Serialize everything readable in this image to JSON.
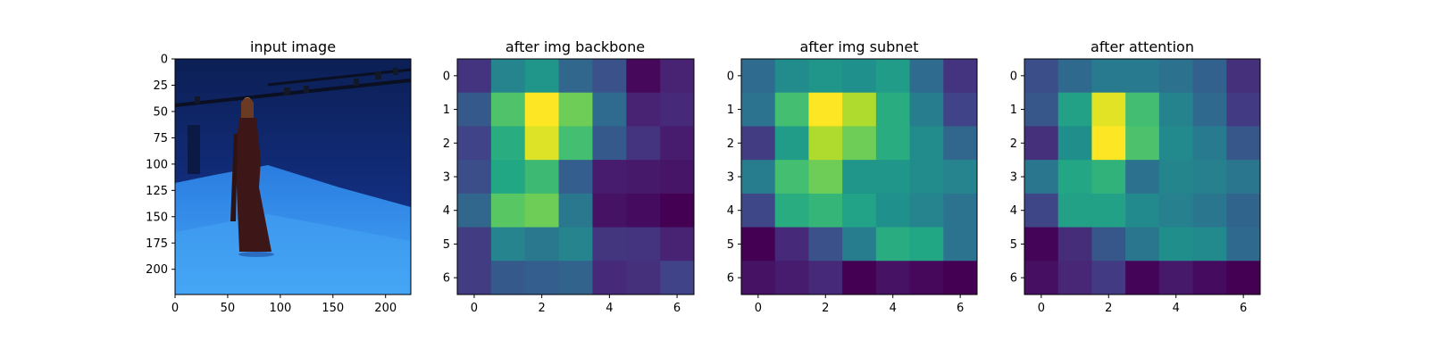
{
  "chart_data": [
    {
      "type": "image",
      "title": "input image",
      "xticks": [
        0,
        50,
        100,
        150,
        200
      ],
      "yticks": [
        0,
        25,
        50,
        75,
        100,
        125,
        150,
        175,
        200
      ],
      "xlim": [
        0,
        224
      ],
      "ylim": [
        224,
        0
      ],
      "colors": {
        "background_dark": "#0d2256",
        "wall": "#13348c",
        "floor": "#2f86e6",
        "floor_light": "#43a0f3",
        "person": "#3b1818",
        "face": "#c89070"
      }
    },
    {
      "type": "heatmap",
      "title": "after img backbone",
      "xticks": [
        0,
        2,
        4,
        6
      ],
      "yticks": [
        0,
        1,
        2,
        3,
        4,
        5,
        6
      ],
      "colormap": "viridis",
      "values": [
        [
          0.15,
          0.45,
          0.52,
          0.33,
          0.25,
          0.02,
          0.1
        ],
        [
          0.28,
          0.72,
          1.0,
          0.78,
          0.35,
          0.1,
          0.12
        ],
        [
          0.2,
          0.62,
          0.95,
          0.7,
          0.28,
          0.15,
          0.08
        ],
        [
          0.24,
          0.6,
          0.68,
          0.3,
          0.08,
          0.07,
          0.06
        ],
        [
          0.33,
          0.74,
          0.78,
          0.4,
          0.05,
          0.03,
          0.0
        ],
        [
          0.18,
          0.45,
          0.4,
          0.45,
          0.16,
          0.15,
          0.1
        ],
        [
          0.18,
          0.28,
          0.3,
          0.32,
          0.12,
          0.14,
          0.2
        ]
      ]
    },
    {
      "type": "heatmap",
      "title": "after img subnet",
      "xticks": [
        0,
        2,
        4,
        6
      ],
      "yticks": [
        0,
        1,
        2,
        3,
        4,
        5,
        6
      ],
      "colormap": "viridis",
      "values": [
        [
          0.35,
          0.48,
          0.52,
          0.5,
          0.55,
          0.35,
          0.15
        ],
        [
          0.38,
          0.7,
          1.0,
          0.88,
          0.62,
          0.42,
          0.2
        ],
        [
          0.18,
          0.55,
          0.88,
          0.78,
          0.62,
          0.48,
          0.33
        ],
        [
          0.42,
          0.7,
          0.78,
          0.52,
          0.52,
          0.48,
          0.45
        ],
        [
          0.22,
          0.62,
          0.66,
          0.58,
          0.5,
          0.45,
          0.38
        ],
        [
          0.0,
          0.12,
          0.25,
          0.42,
          0.62,
          0.6,
          0.38
        ],
        [
          0.05,
          0.08,
          0.12,
          0.0,
          0.05,
          0.02,
          0.0
        ]
      ]
    },
    {
      "type": "heatmap",
      "title": "after attention",
      "xticks": [
        0,
        2,
        4,
        6
      ],
      "yticks": [
        0,
        1,
        2,
        3,
        4,
        5,
        6
      ],
      "colormap": "viridis",
      "values": [
        [
          0.25,
          0.35,
          0.42,
          0.42,
          0.38,
          0.32,
          0.15
        ],
        [
          0.28,
          0.58,
          0.96,
          0.7,
          0.45,
          0.35,
          0.18
        ],
        [
          0.15,
          0.5,
          1.0,
          0.72,
          0.48,
          0.42,
          0.28
        ],
        [
          0.4,
          0.6,
          0.65,
          0.38,
          0.46,
          0.44,
          0.4
        ],
        [
          0.22,
          0.58,
          0.58,
          0.48,
          0.44,
          0.4,
          0.33
        ],
        [
          0.02,
          0.14,
          0.28,
          0.4,
          0.5,
          0.48,
          0.35
        ],
        [
          0.05,
          0.12,
          0.18,
          0.02,
          0.08,
          0.04,
          0.01
        ]
      ]
    }
  ]
}
